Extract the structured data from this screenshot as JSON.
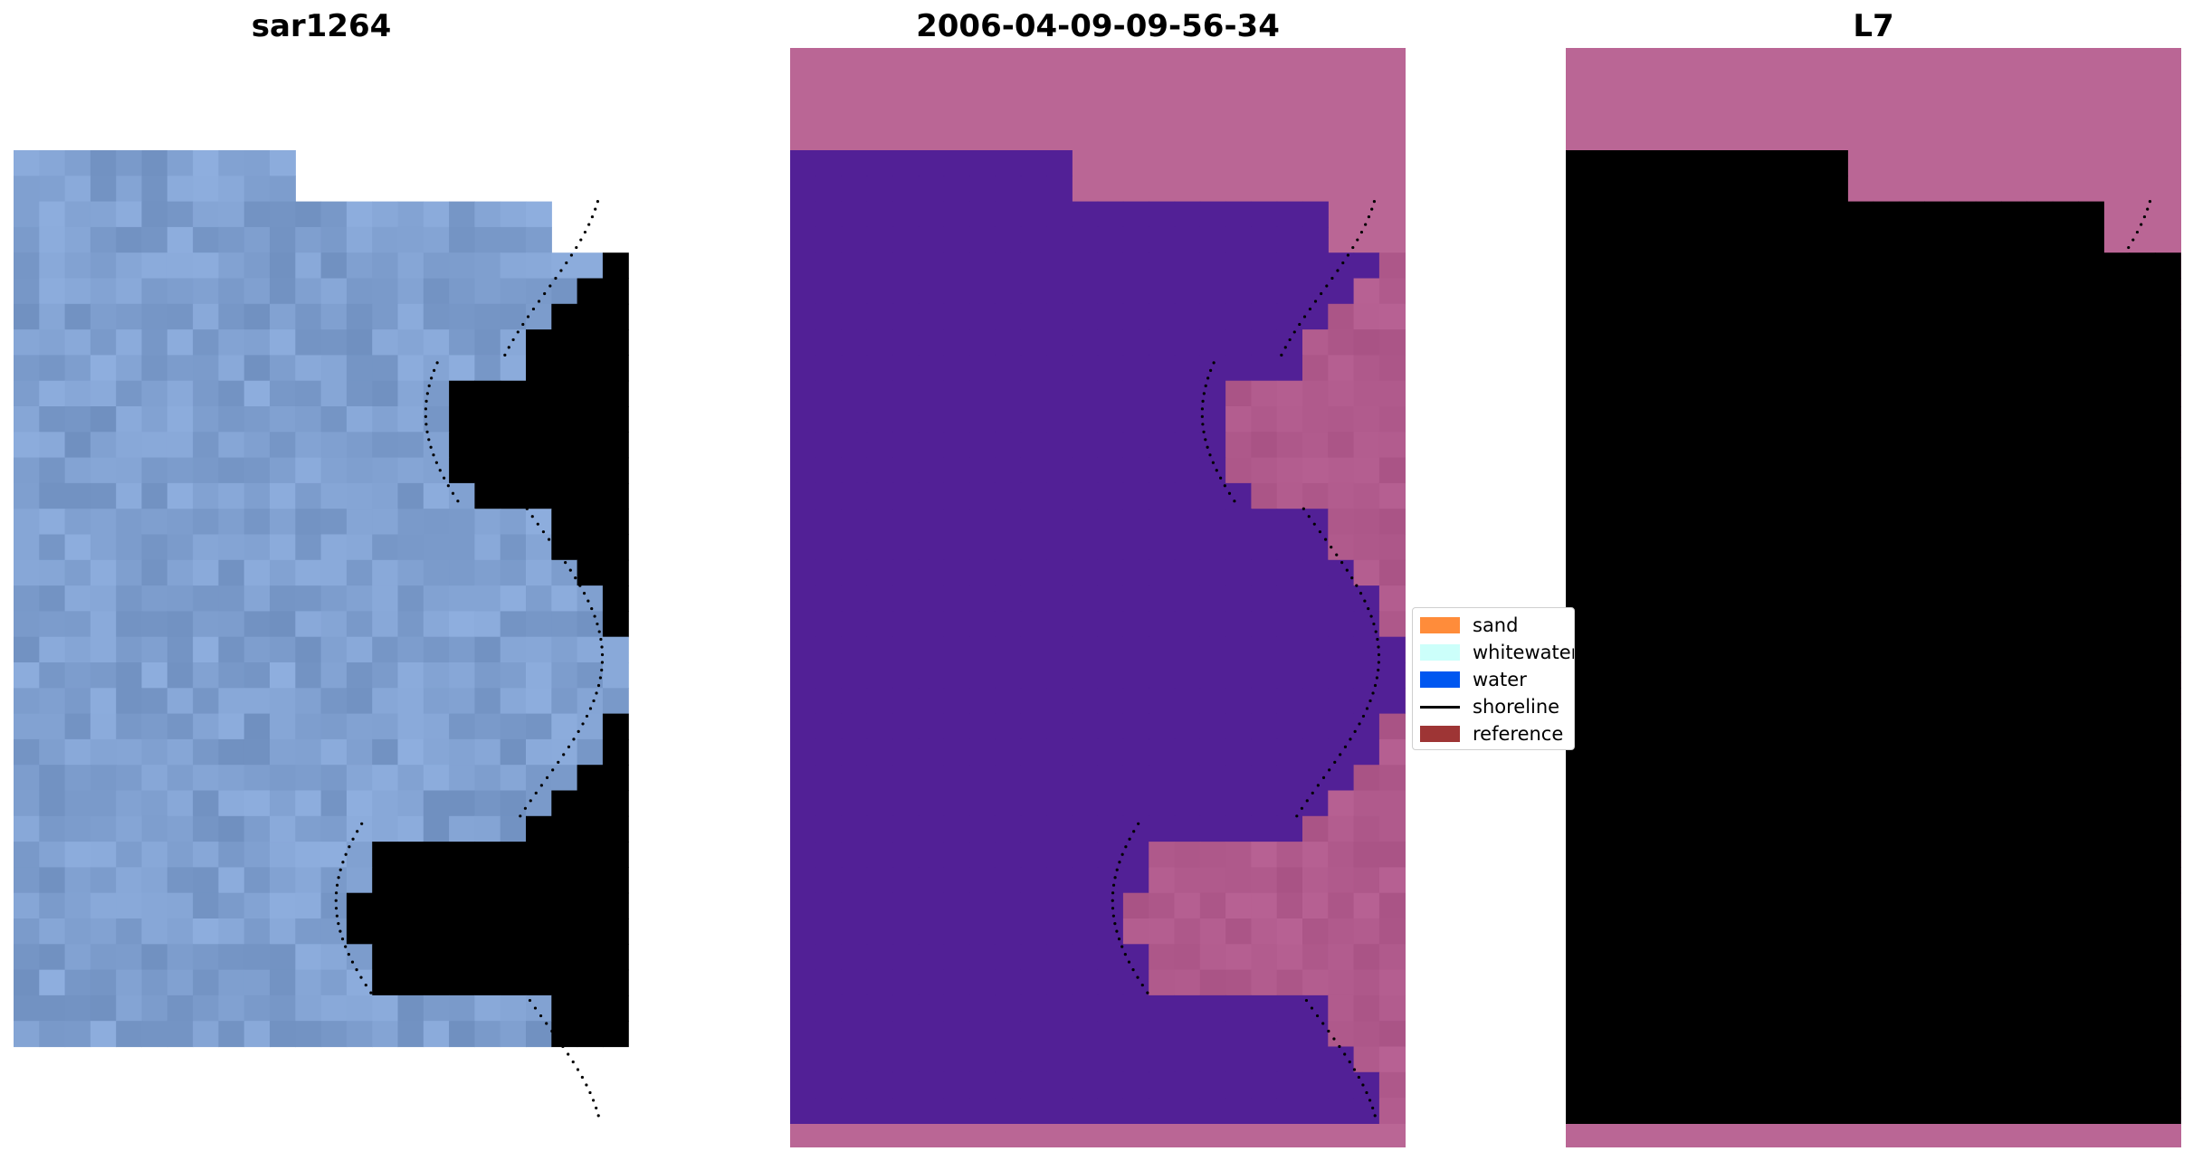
{
  "panels": [
    {
      "id": "rgb",
      "title": "sar1264"
    },
    {
      "id": "classified",
      "title": "2006-04-09-09-56-34"
    },
    {
      "id": "index",
      "title": "L7"
    }
  ],
  "legend": {
    "items": [
      {
        "label": "sand",
        "kind": "patch",
        "color": "#ff8c3a"
      },
      {
        "label": "whitewater",
        "kind": "patch",
        "color": "#ccfffa"
      },
      {
        "label": "water",
        "kind": "patch",
        "color": "#0057f0"
      },
      {
        "label": "shoreline",
        "kind": "line",
        "color": "#000000"
      },
      {
        "label": "reference",
        "kind": "patch",
        "color": "#9e3535"
      }
    ]
  },
  "colors": {
    "nodata": "#ba6695",
    "water_class": "#522096",
    "land_class": "#b05a8c",
    "rgb_water": "#7f9fcf",
    "rgb_surf": "#e4eef2",
    "index_water": "#6a1a9e",
    "index_land": "#c8104a",
    "shoreline_dots": "#000000"
  }
}
